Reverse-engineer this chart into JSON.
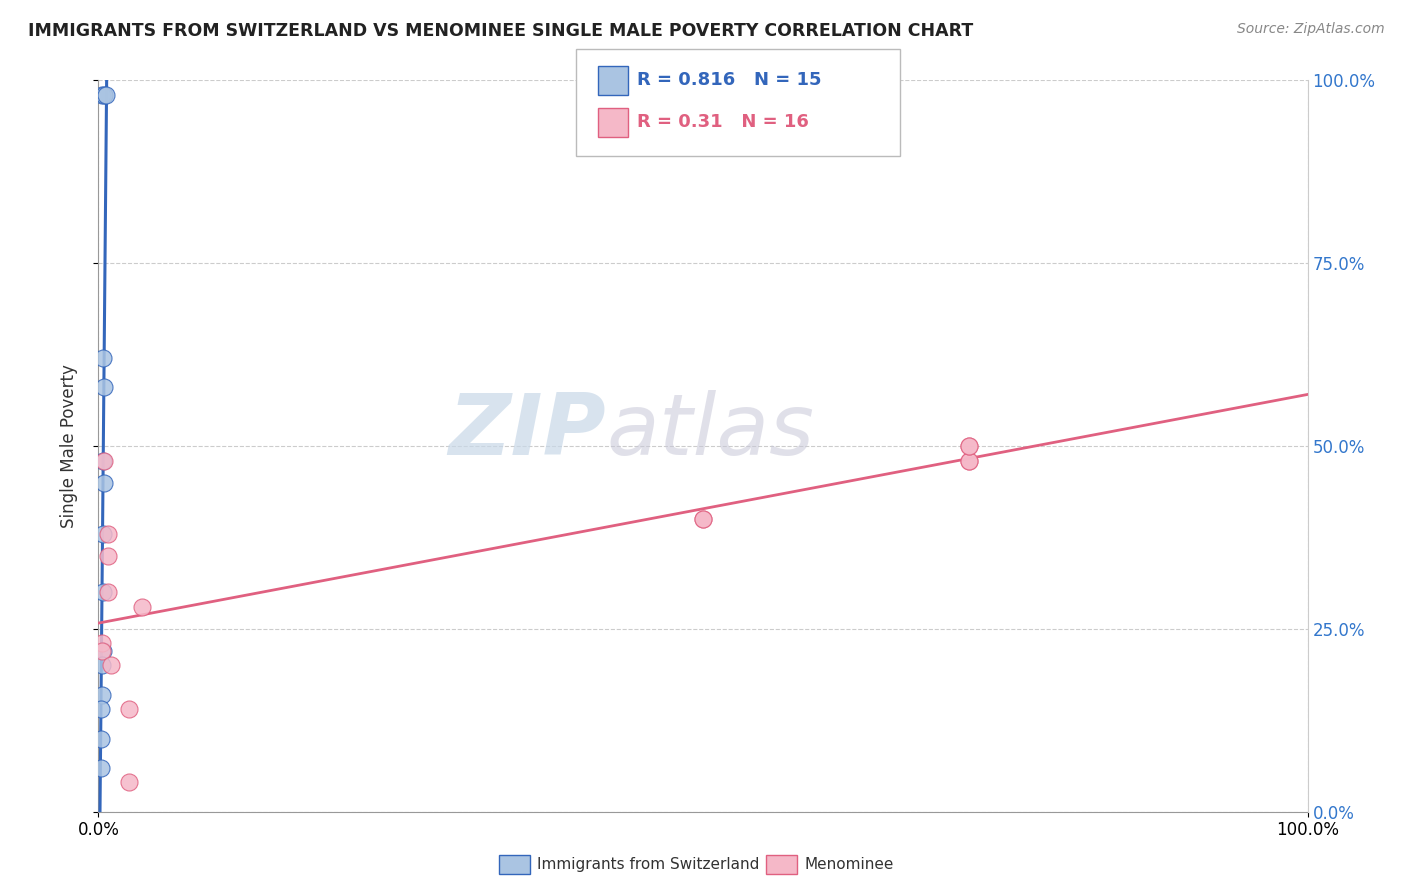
{
  "title": "IMMIGRANTS FROM SWITZERLAND VS MENOMINEE SINGLE MALE POVERTY CORRELATION CHART",
  "source": "Source: ZipAtlas.com",
  "ylabel": "Single Male Poverty",
  "legend_label1": "Immigrants from Switzerland",
  "legend_label2": "Menominee",
  "r1": 0.816,
  "n1": 15,
  "r2": 0.31,
  "n2": 16,
  "color1": "#aac4e2",
  "color2": "#f5b8c8",
  "line_color1": "#3366bb",
  "line_color2": "#e06080",
  "watermark_zip": "ZIP",
  "watermark_atlas": "atlas",
  "blue_points_x": [
    0.003,
    0.005,
    0.006,
    0.004,
    0.005,
    0.004,
    0.005,
    0.004,
    0.004,
    0.004,
    0.003,
    0.003,
    0.002,
    0.002,
    0.002
  ],
  "blue_points_y": [
    0.98,
    0.98,
    0.98,
    0.62,
    0.58,
    0.48,
    0.45,
    0.38,
    0.3,
    0.22,
    0.2,
    0.16,
    0.14,
    0.1,
    0.06
  ],
  "pink_points_x": [
    0.003,
    0.003,
    0.005,
    0.008,
    0.008,
    0.008,
    0.01,
    0.025,
    0.025,
    0.036,
    0.5,
    0.5,
    0.72,
    0.72,
    0.72,
    0.72
  ],
  "pink_points_y": [
    0.23,
    0.22,
    0.48,
    0.38,
    0.35,
    0.3,
    0.2,
    0.14,
    0.04,
    0.28,
    0.4,
    0.4,
    0.48,
    0.48,
    0.5,
    0.5
  ],
  "xlim": [
    0.0,
    1.0
  ],
  "ylim": [
    0.0,
    1.0
  ],
  "ytick_values": [
    0.0,
    0.25,
    0.5,
    0.75,
    1.0
  ],
  "ytick_labels": [
    "0.0%",
    "25.0%",
    "50.0%",
    "75.0%",
    "100.0%"
  ],
  "xtick_values": [
    0.0,
    1.0
  ],
  "xtick_labels": [
    "0.0%",
    "100.0%"
  ]
}
